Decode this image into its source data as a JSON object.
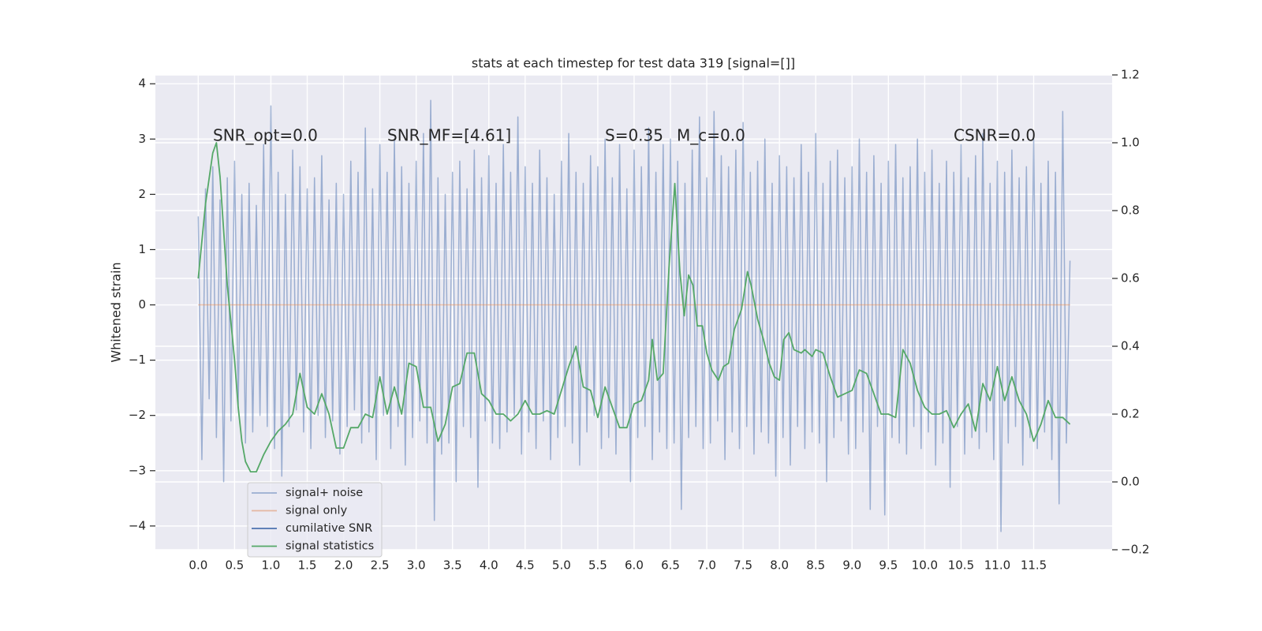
{
  "chart_data": {
    "type": "line",
    "title": "stats at each timestep for test data 319 [signal=[]]",
    "y_label": "Whitened strain",
    "annotations": [
      "SNR_opt=0.0",
      "SNR_MF=[4.61]",
      "S=0.35",
      "M_c=0.0",
      "CSNR=0.0"
    ],
    "xlim": [
      -0.59,
      12.58
    ],
    "ylim": [
      -4.43,
      4.16
    ],
    "y2lim": [
      -0.2,
      1.2
    ],
    "xticks": [
      {
        "value": 0,
        "label": "0.0"
      },
      0.5,
      {
        "value": 1,
        "label": "1.0"
      },
      1.5,
      {
        "value": 2,
        "label": "2.0"
      },
      2.5,
      {
        "value": 3,
        "label": "3.0"
      },
      3.5,
      {
        "value": 4,
        "label": "4.0"
      },
      4.5,
      {
        "value": 5,
        "label": "5.0"
      },
      5.5,
      {
        "value": 6,
        "label": "6.0"
      },
      6.5,
      {
        "value": 7,
        "label": "7.0"
      },
      7.5,
      {
        "value": 8,
        "label": "8.0"
      },
      8.5,
      {
        "value": 9,
        "label": "9.0"
      },
      9.5,
      {
        "value": 10,
        "label": "10.0"
      },
      10.5,
      {
        "value": 11,
        "label": "11.0"
      },
      11.5
    ],
    "yticks": [
      {
        "value": -4,
        "label": "−4"
      },
      {
        "value": -3,
        "label": "−3"
      },
      {
        "value": -2,
        "label": "−2"
      },
      {
        "value": -1,
        "label": "−1"
      },
      0,
      1,
      2,
      3,
      4
    ],
    "y2ticks": [
      {
        "value": -0.2,
        "label": "−0.2"
      },
      {
        "value": 0,
        "label": "0.0"
      },
      0.2,
      0.4,
      0.6,
      0.8,
      {
        "value": 1,
        "label": "1.0"
      },
      1.2
    ],
    "grid": true,
    "legend": "lower left",
    "series": [
      {
        "name": "signal+ noise",
        "color": "#4c72b0",
        "opacity": 0.5,
        "x": [
          0,
          0.05,
          0.1,
          0.15,
          0.2,
          0.25,
          0.3,
          0.35,
          0.4,
          0.45,
          0.5,
          0.55,
          0.6,
          0.65,
          0.7,
          0.75,
          0.8,
          0.85,
          0.9,
          0.95,
          1,
          1.05,
          1.1,
          1.15,
          1.2,
          1.25,
          1.3,
          1.35,
          1.4,
          1.45,
          1.5,
          1.55,
          1.6,
          1.65,
          1.7,
          1.75,
          1.8,
          1.85,
          1.9,
          1.95,
          2,
          2.05,
          2.1,
          2.15,
          2.2,
          2.25,
          2.3,
          2.35,
          2.4,
          2.45,
          2.5,
          2.55,
          2.6,
          2.65,
          2.7,
          2.75,
          2.8,
          2.85,
          2.9,
          2.95,
          3,
          3.05,
          3.1,
          3.15,
          3.2,
          3.25,
          3.3,
          3.35,
          3.4,
          3.45,
          3.5,
          3.55,
          3.6,
          3.65,
          3.7,
          3.75,
          3.8,
          3.85,
          3.9,
          3.95,
          4,
          4.05,
          4.1,
          4.15,
          4.2,
          4.25,
          4.3,
          4.35,
          4.4,
          4.45,
          4.5,
          4.55,
          4.6,
          4.65,
          4.7,
          4.75,
          4.8,
          4.85,
          4.9,
          4.95,
          5,
          5.05,
          5.1,
          5.15,
          5.2,
          5.25,
          5.3,
          5.35,
          5.4,
          5.45,
          5.5,
          5.55,
          5.6,
          5.65,
          5.7,
          5.75,
          5.8,
          5.85,
          5.9,
          5.95,
          6,
          6.05,
          6.1,
          6.15,
          6.2,
          6.25,
          6.3,
          6.35,
          6.4,
          6.45,
          6.5,
          6.55,
          6.6,
          6.65,
          6.7,
          6.75,
          6.8,
          6.85,
          6.9,
          6.95,
          7,
          7.05,
          7.1,
          7.15,
          7.2,
          7.25,
          7.3,
          7.35,
          7.4,
          7.45,
          7.5,
          7.55,
          7.6,
          7.65,
          7.7,
          7.75,
          7.8,
          7.85,
          7.9,
          7.95,
          8,
          8.05,
          8.1,
          8.15,
          8.2,
          8.25,
          8.3,
          8.35,
          8.4,
          8.45,
          8.5,
          8.55,
          8.6,
          8.65,
          8.7,
          8.75,
          8.8,
          8.85,
          8.9,
          8.95,
          9,
          9.05,
          9.1,
          9.15,
          9.2,
          9.25,
          9.3,
          9.35,
          9.4,
          9.45,
          9.5,
          9.55,
          9.6,
          9.65,
          9.7,
          9.75,
          9.8,
          9.85,
          9.9,
          9.95,
          10,
          10.05,
          10.1,
          10.15,
          10.2,
          10.25,
          10.3,
          10.35,
          10.4,
          10.45,
          10.5,
          10.55,
          10.6,
          10.65,
          10.7,
          10.75,
          10.8,
          10.85,
          10.9,
          10.95,
          11,
          11.05,
          11.1,
          11.15,
          11.2,
          11.25,
          11.3,
          11.35,
          11.4,
          11.45,
          11.5,
          11.55,
          11.6,
          11.65,
          11.7,
          11.75,
          11.8,
          11.85,
          11.9,
          11.95,
          12
        ],
        "values": [
          1.6,
          -2.8,
          2.1,
          -1.7,
          2.5,
          -2.4,
          1.9,
          -3.2,
          2.3,
          -2.1,
          2.6,
          -1.8,
          2.0,
          -2.5,
          2.2,
          -2.3,
          1.8,
          -2.0,
          2.9,
          -2.2,
          3.6,
          -2.6,
          2.4,
          -3.1,
          2.0,
          -2.2,
          2.8,
          -1.9,
          2.5,
          -2.3,
          2.1,
          -2.6,
          2.3,
          -2.0,
          2.7,
          -2.4,
          1.9,
          -2.1,
          2.2,
          -2.7,
          2.0,
          -2.2,
          2.6,
          -1.9,
          2.4,
          -2.5,
          3.2,
          -2.3,
          2.1,
          -2.8,
          2.9,
          -2.0,
          2.4,
          -2.6,
          3.0,
          -2.2,
          2.5,
          -2.9,
          2.2,
          -2.4,
          2.6,
          -2.1,
          3.1,
          -2.5,
          3.7,
          -3.9,
          2.3,
          -2.7,
          2.0,
          -2.5,
          2.4,
          -3.2,
          2.6,
          -2.2,
          2.1,
          -2.4,
          2.8,
          -3.3,
          2.3,
          -2.1,
          2.7,
          -2.5,
          2.2,
          -2.6,
          2.9,
          -2.3,
          2.4,
          -2.0,
          3.4,
          -2.7,
          2.5,
          -2.3,
          2.2,
          -2.6,
          2.8,
          -2.1,
          2.3,
          -2.8,
          2.0,
          -2.4,
          2.6,
          -2.2,
          3.1,
          -2.5,
          2.4,
          -2.9,
          2.2,
          -2.3,
          2.7,
          -2.0,
          2.5,
          -2.6,
          3.0,
          -2.4,
          2.3,
          -2.7,
          2.9,
          -2.2,
          2.1,
          -3.2,
          2.8,
          -2.4,
          2.5,
          -2.2,
          3.2,
          -2.8,
          2.4,
          -2.3,
          2.9,
          -2.6,
          3.0,
          -2.5,
          2.6,
          -3.7,
          2.2,
          -2.4,
          2.8,
          -2.2,
          3.4,
          -2.6,
          2.3,
          -2.5,
          3.5,
          -2.1,
          2.7,
          -2.8,
          2.5,
          -2.3,
          2.8,
          -2.6,
          3.3,
          -2.2,
          2.4,
          -2.7,
          2.6,
          -2.3,
          3.0,
          -2.5,
          2.2,
          -3.1,
          2.7,
          -2.4,
          2.5,
          -2.9,
          2.3,
          -2.2,
          2.9,
          -2.6,
          2.4,
          -2.3,
          3.1,
          -2.5,
          2.2,
          -3.2,
          2.6,
          -2.4,
          2.8,
          -2.1,
          2.3,
          -2.7,
          2.5,
          -2.6,
          3.0,
          -2.3,
          2.4,
          -3.7,
          2.7,
          -2.2,
          2.2,
          -3.8,
          2.6,
          -2.4,
          2.9,
          -2.5,
          2.3,
          -2.7,
          2.5,
          -2.2,
          3.0,
          -2.6,
          2.4,
          -2.3,
          2.8,
          -2.9,
          2.2,
          -2.5,
          2.6,
          -3.3,
          2.4,
          -2.2,
          2.9,
          -2.7,
          2.3,
          -2.4,
          2.7,
          -2.6,
          3.1,
          -2.3,
          2.2,
          -2.8,
          2.6,
          -4.1,
          2.4,
          -2.5,
          2.8,
          -2.2,
          2.3,
          -2.9,
          2.5,
          -2.4,
          3.0,
          -2.6,
          2.2,
          -2.3,
          2.6,
          -2.8,
          2.4,
          -3.6,
          3.5,
          -2.5,
          0.8
        ]
      },
      {
        "name": "signal only",
        "color": "#dd8452",
        "opacity": 0.5,
        "x": [
          0,
          12
        ],
        "values": [
          0,
          0
        ]
      },
      {
        "name": "cumilative SNR",
        "color": "#4c72b0",
        "x": [],
        "values": []
      },
      {
        "name": "signal statistics",
        "color": "#55a868",
        "axis": "y2",
        "x": [
          0,
          0.1,
          0.2,
          0.25,
          0.3,
          0.4,
          0.5,
          0.55,
          0.6,
          0.65,
          0.72,
          0.8,
          0.9,
          1,
          1.1,
          1.2,
          1.3,
          1.4,
          1.5,
          1.6,
          1.7,
          1.8,
          1.9,
          2,
          2.1,
          2.2,
          2.3,
          2.4,
          2.5,
          2.6,
          2.7,
          2.8,
          2.9,
          3,
          3.1,
          3.2,
          3.3,
          3.4,
          3.5,
          3.6,
          3.7,
          3.8,
          3.9,
          4,
          4.1,
          4.2,
          4.3,
          4.4,
          4.5,
          4.6,
          4.7,
          4.8,
          4.9,
          5,
          5.1,
          5.2,
          5.3,
          5.4,
          5.5,
          5.6,
          5.7,
          5.8,
          5.9,
          6,
          6.1,
          6.2,
          6.25,
          6.32,
          6.4,
          6.48,
          6.56,
          6.63,
          6.69,
          6.75,
          6.81,
          6.87,
          6.94,
          7,
          7.07,
          7.16,
          7.23,
          7.3,
          7.38,
          7.48,
          7.56,
          7.61,
          7.7,
          7.78,
          7.86,
          7.93,
          8,
          8.06,
          8.13,
          8.2,
          8.3,
          8.35,
          8.45,
          8.5,
          8.6,
          8.7,
          8.8,
          8.9,
          9,
          9.1,
          9.2,
          9.3,
          9.4,
          9.5,
          9.6,
          9.7,
          9.8,
          9.9,
          10,
          10.1,
          10.2,
          10.3,
          10.4,
          10.5,
          10.6,
          10.7,
          10.8,
          10.9,
          11,
          11.1,
          11.2,
          11.3,
          11.4,
          11.5,
          11.6,
          11.7,
          11.8,
          11.9,
          12
        ],
        "values": [
          0.6,
          0.82,
          0.97,
          1.0,
          0.9,
          0.58,
          0.36,
          0.22,
          0.12,
          0.06,
          0.03,
          0.03,
          0.08,
          0.12,
          0.15,
          0.17,
          0.2,
          0.32,
          0.22,
          0.2,
          0.26,
          0.2,
          0.1,
          0.1,
          0.16,
          0.16,
          0.2,
          0.19,
          0.31,
          0.2,
          0.28,
          0.2,
          0.35,
          0.34,
          0.22,
          0.22,
          0.12,
          0.17,
          0.28,
          0.29,
          0.38,
          0.38,
          0.26,
          0.24,
          0.2,
          0.2,
          0.18,
          0.2,
          0.24,
          0.2,
          0.2,
          0.21,
          0.2,
          0.27,
          0.34,
          0.4,
          0.28,
          0.27,
          0.19,
          0.28,
          0.22,
          0.16,
          0.16,
          0.23,
          0.24,
          0.3,
          0.42,
          0.3,
          0.32,
          0.63,
          0.88,
          0.62,
          0.49,
          0.61,
          0.58,
          0.46,
          0.46,
          0.38,
          0.33,
          0.3,
          0.34,
          0.35,
          0.45,
          0.51,
          0.62,
          0.58,
          0.48,
          0.42,
          0.35,
          0.31,
          0.3,
          0.42,
          0.44,
          0.39,
          0.38,
          0.39,
          0.37,
          0.39,
          0.38,
          0.31,
          0.25,
          0.26,
          0.27,
          0.33,
          0.32,
          0.26,
          0.2,
          0.2,
          0.19,
          0.39,
          0.35,
          0.27,
          0.22,
          0.2,
          0.2,
          0.21,
          0.16,
          0.2,
          0.23,
          0.15,
          0.29,
          0.24,
          0.34,
          0.24,
          0.31,
          0.24,
          0.2,
          0.12,
          0.17,
          0.24,
          0.19,
          0.19,
          0.17
        ]
      }
    ]
  }
}
